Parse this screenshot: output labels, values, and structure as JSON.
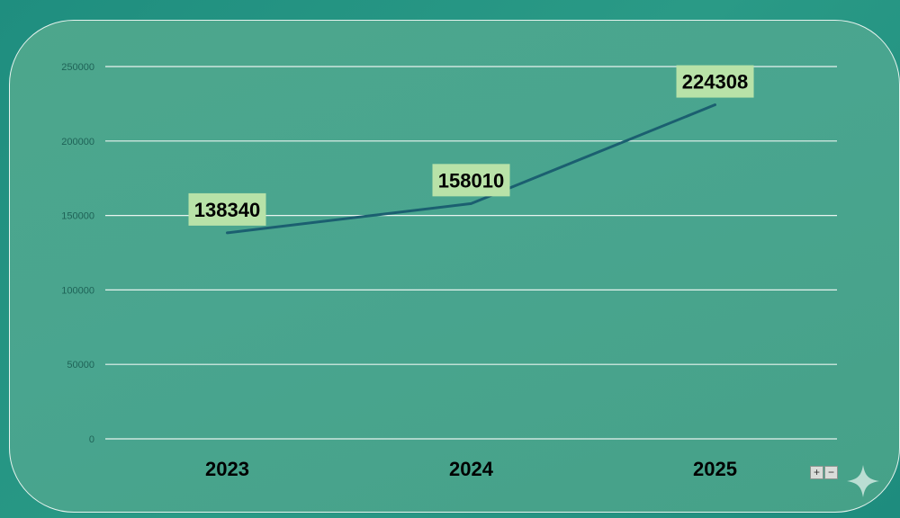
{
  "chart_data": {
    "type": "line",
    "categories": [
      "2023",
      "2024",
      "2025"
    ],
    "series": [
      {
        "values": [
          138340,
          158010,
          224308
        ]
      }
    ],
    "data_labels": [
      "138340",
      "158010",
      "224308"
    ],
    "y_ticks": [
      "0",
      "50000",
      "100000",
      "150000",
      "200000",
      "250000"
    ],
    "ylim": [
      0,
      250000
    ],
    "grid": true,
    "line_color": "#1b5f70",
    "label_bg_color": "#b8e2a8",
    "grid_color": "#e8f4ef"
  },
  "zoom": {
    "plus_label": "+",
    "minus_label": "−"
  },
  "icons": {
    "sparkle": "sparkle-icon"
  }
}
